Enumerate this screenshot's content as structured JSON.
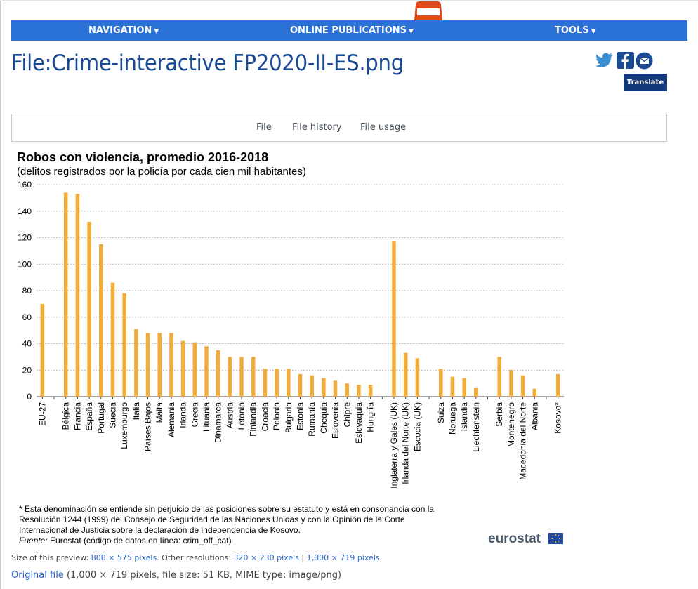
{
  "nav": {
    "items": [
      "NAVIGATION",
      "ONLINE PUBLICATIONS",
      "TOOLS"
    ]
  },
  "page": {
    "title": "File:Crime-interactive FP2020-II-ES.png",
    "translate_label": "Translate"
  },
  "social_icons": [
    "twitter-icon",
    "facebook-icon",
    "email-icon"
  ],
  "file_tabs": [
    "File",
    "File history",
    "File usage"
  ],
  "chart_data": {
    "type": "bar",
    "title": "Robos con violencia, promedio 2016-2018",
    "subtitle": "(delitos registrados por la policía por cada cien mil habitantes)",
    "xlabel": "",
    "ylabel": "",
    "ylim": [
      0,
      160
    ],
    "yticks": [
      0,
      20,
      40,
      60,
      80,
      100,
      120,
      140,
      160
    ],
    "grid": true,
    "color": "#f0ad3c",
    "categories": [
      "EU-27",
      "",
      "Bélgica",
      "Francia",
      "España",
      "Portugal",
      "Suecia",
      "Luxemburgo",
      "Italia",
      "Países Bajos",
      "Malta",
      "Alemania",
      "Irlanda",
      "Grecia",
      "Lituania",
      "Dinamarca",
      "Austria",
      "Letonia",
      "Finlandia",
      "Croacia",
      "Polonia",
      "Bulgaria",
      "Estonia",
      "Rumanía",
      "Chequia",
      "Eslovenia",
      "Chipre",
      "Eslovaquia",
      "Hungría",
      "",
      "Inglaterra y Gales (UK)",
      "Irlanda del Norte (UK)",
      "Escocia (UK)",
      "",
      "Suiza",
      "Noruega",
      "Islandia",
      "Liechtenstein",
      "",
      "Serbia",
      "Montenegro",
      "Macedonia del Norte",
      "Albania",
      "",
      "Kosovo*"
    ],
    "values": [
      70,
      null,
      154,
      153,
      132,
      115,
      86,
      78,
      51,
      48,
      48,
      48,
      42,
      41,
      38,
      35,
      30,
      30,
      30,
      21,
      21,
      21,
      17,
      16,
      14,
      12,
      10,
      9,
      9,
      null,
      117,
      33,
      29,
      null,
      21,
      15,
      14,
      7,
      null,
      30,
      20,
      16,
      6,
      null,
      17
    ]
  },
  "notes": {
    "line1": "* Esta denominación se entiende sin perjuicio de las posiciones sobre su estatuto y está en consonancia con la",
    "line2": "Resolución 1244 (1999) del Consejo de Seguridad de las Naciones Unidas y con la Opinión de la Corte",
    "line3": "Internacional de Justicia sobre la declaración de independencia de Kosovo.",
    "source_label": "Fuente:",
    "source_text": " Eurostat (código de datos en línea: crim_off_cat)"
  },
  "brand": "eurostat",
  "preview": {
    "prefix": "Size of this preview: ",
    "size": "800 × 575 pixels",
    "mid": ". Other resolutions: ",
    "res1": "320 × 230 pixels",
    "sep": " | ",
    "res2": "1,000 × 719 pixels",
    "end": "."
  },
  "original": {
    "link": "Original file",
    "info": " (1,000 × 719 pixels, file size: 51 KB, MIME type: image/png)"
  }
}
